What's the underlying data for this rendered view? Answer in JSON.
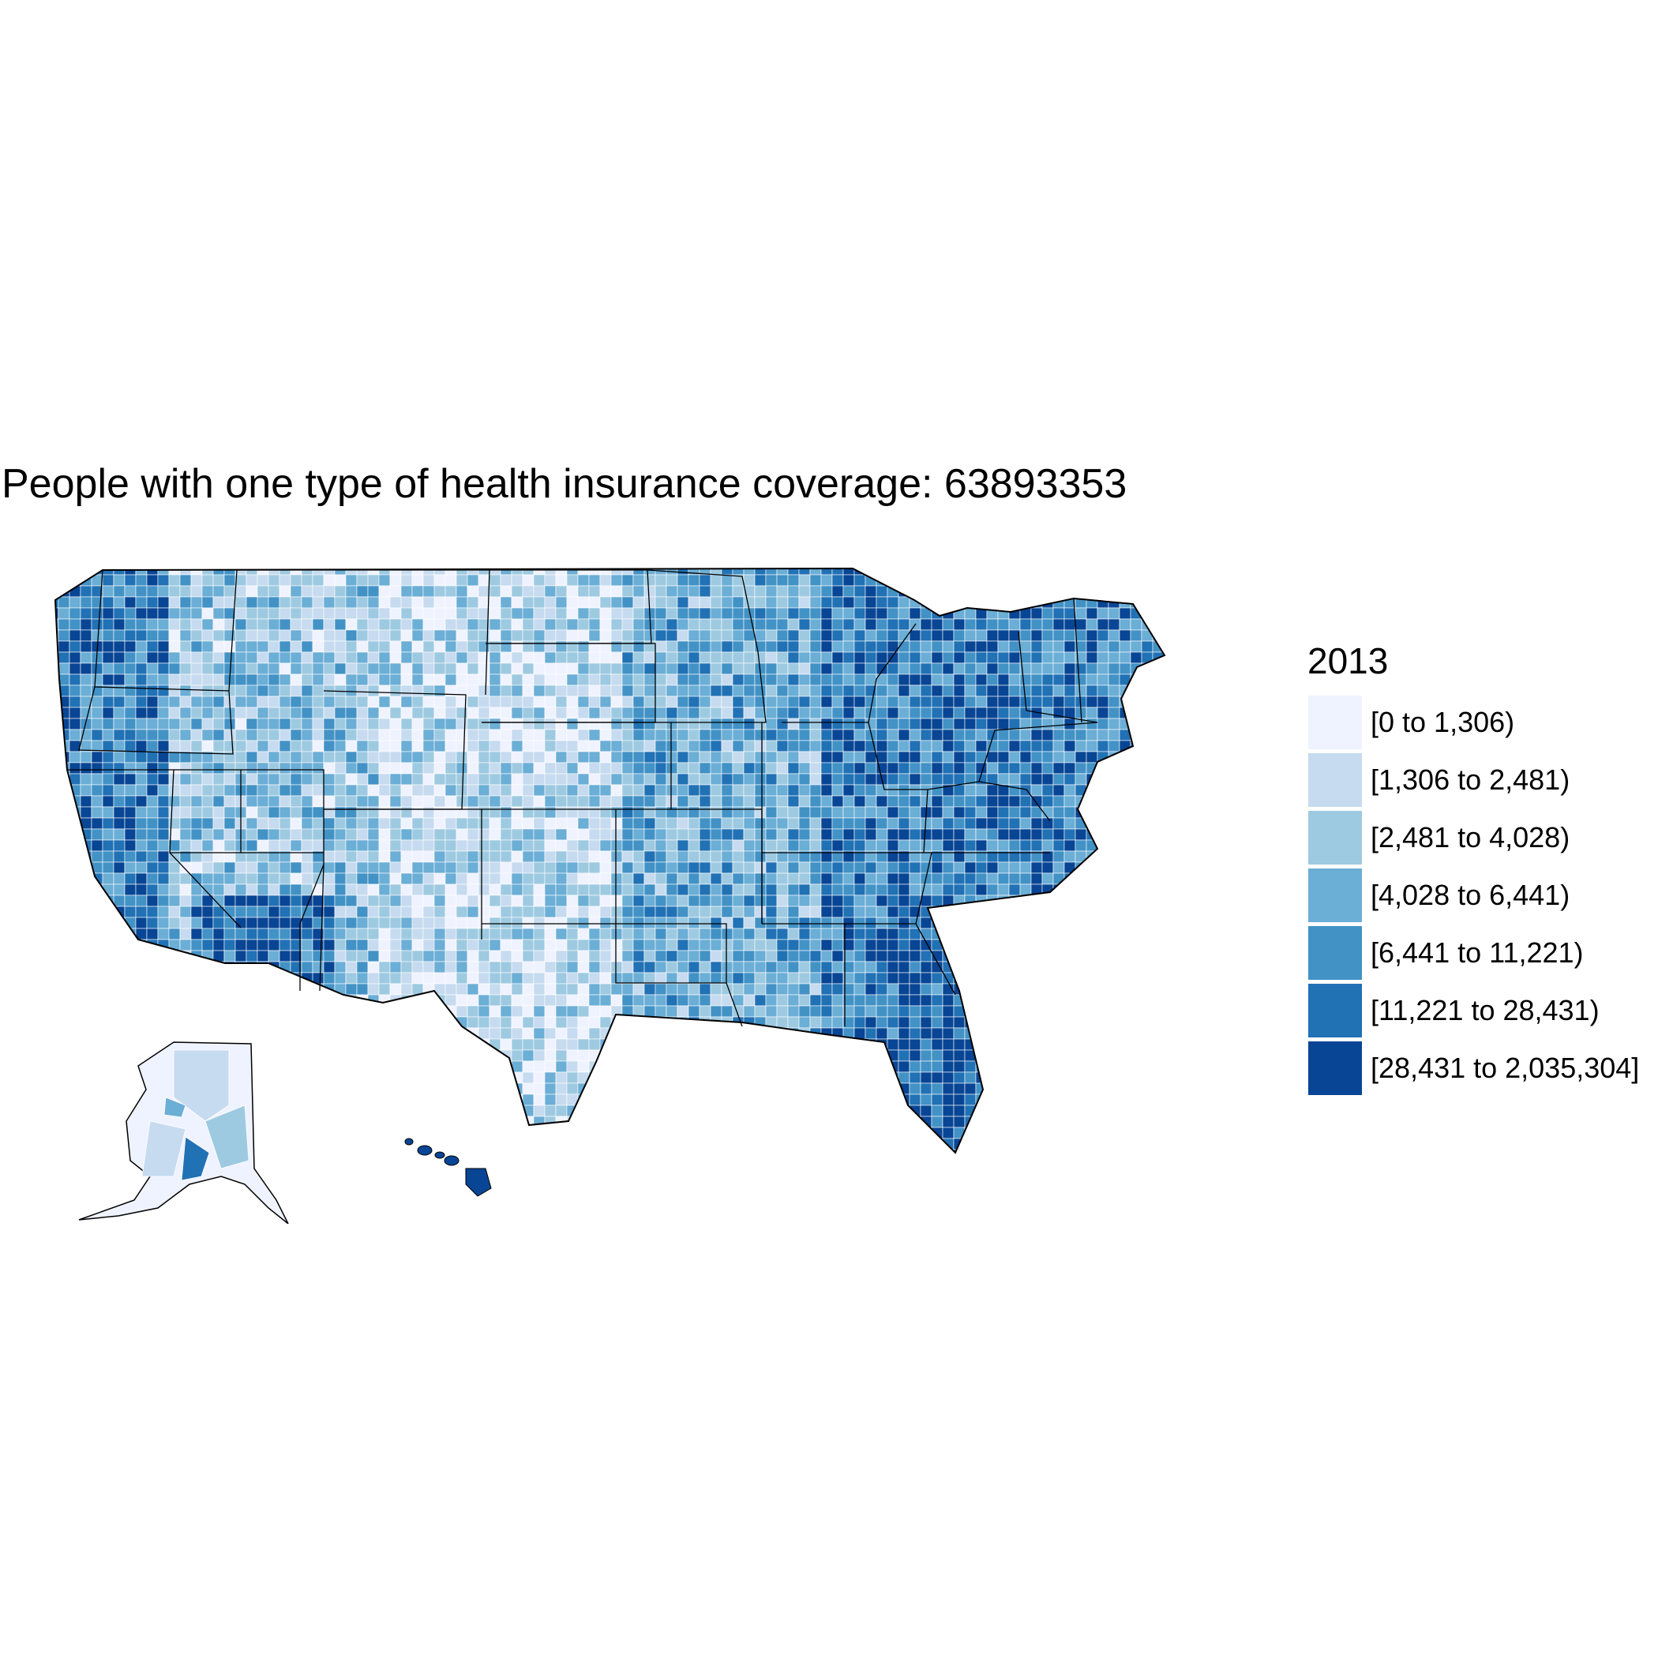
{
  "title": "People with one type of health insurance coverage: 63893353",
  "legend": {
    "title": "2013",
    "items": [
      {
        "label": "[0 to 1,306)",
        "color": "#eff3ff"
      },
      {
        "label": "[1,306 to 2,481)",
        "color": "#c6dbef"
      },
      {
        "label": "[2,481 to 4,028)",
        "color": "#9ecae1"
      },
      {
        "label": "[4,028 to 6,441)",
        "color": "#6baed6"
      },
      {
        "label": "[6,441 to 11,221)",
        "color": "#4292c6"
      },
      {
        "label": "[11,221 to 28,431)",
        "color": "#2171b5"
      },
      {
        "label": "[28,431 to 2,035,304]",
        "color": "#084594"
      }
    ]
  },
  "map": {
    "regions": [
      "contiguous-us",
      "alaska",
      "hawaii"
    ],
    "border_color": "#000000",
    "county_border_color": "#ffffff"
  }
}
